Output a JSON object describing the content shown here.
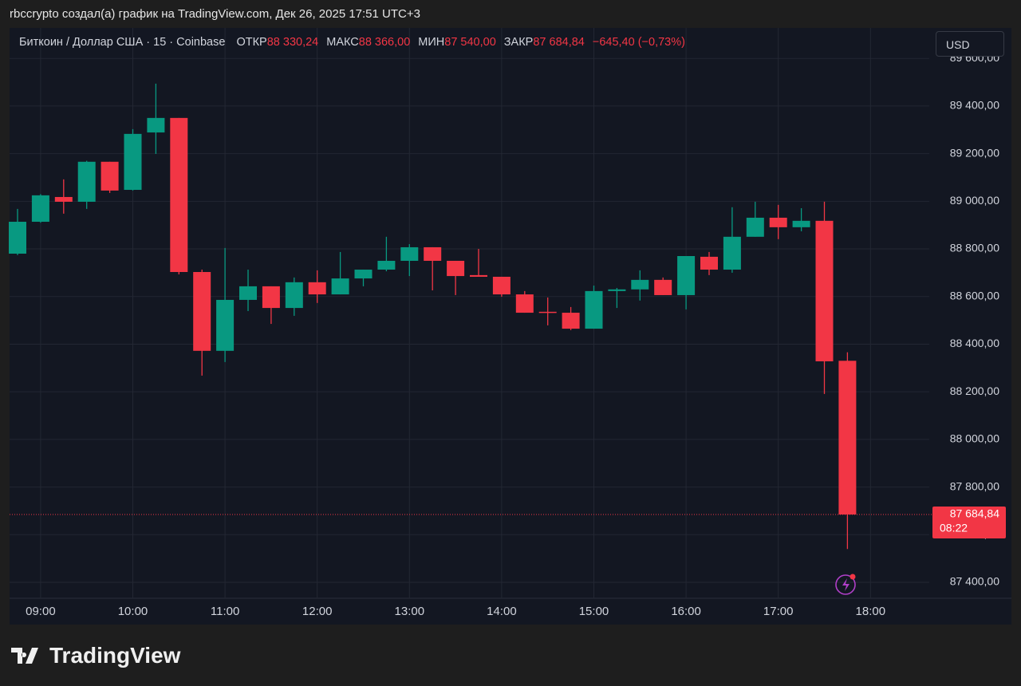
{
  "header": {
    "text": "rbccrypto создал(а) график на TradingView.com, Дек 26, 2025 17:51 UTC+3"
  },
  "chart_data": {
    "type": "candlestick",
    "symbol": "Биткоин / Доллар США · 15 · Coinbase",
    "ohlc_info": [
      {
        "label": "ОТКР",
        "value": "88 330,24"
      },
      {
        "label": "МАКС",
        "value": "88 366,00"
      },
      {
        "label": "МИН",
        "value": "87 540,00"
      },
      {
        "label": "ЗАКР",
        "value": "87 684,84"
      }
    ],
    "change": "−645,40 (−0,73%)",
    "currency": "USD",
    "up_color": "#089981",
    "down_color": "#f23645",
    "x_labels": [
      "09:00",
      "10:00",
      "11:00",
      "12:00",
      "13:00",
      "14:00",
      "15:00",
      "16:00",
      "17:00",
      "18:00"
    ],
    "open": [
      88780,
      88914,
      89018,
      88998,
      89166,
      89048,
      89289,
      89350,
      88703,
      88372,
      88586,
      88643,
      88552,
      88660,
      88609,
      88676,
      88713,
      88750,
      88807,
      88750,
      88690,
      88683,
      88609,
      88536,
      88532,
      88465,
      88623,
      88630,
      88670,
      88606,
      88767,
      88713,
      88851,
      88931,
      88891,
      88918,
      88330.24
    ],
    "high": [
      88968,
      89030,
      89092,
      89170,
      89166,
      89303,
      89494,
      89350,
      88713,
      88804,
      88713,
      88643,
      88680,
      88710,
      88787,
      88713,
      88851,
      88820,
      88807,
      88750,
      88800,
      88683,
      88623,
      88596,
      88556,
      88646,
      88636,
      88710,
      88680,
      88770,
      88787,
      88975,
      88998,
      88985,
      88971,
      88998,
      88366
    ],
    "low": [
      88774,
      88910,
      88948,
      88968,
      89035,
      89045,
      89199,
      88693,
      88268,
      88325,
      88539,
      88485,
      88519,
      88573,
      88609,
      88643,
      88706,
      88686,
      88626,
      88606,
      88683,
      88599,
      88532,
      88479,
      88459,
      88465,
      88552,
      88583,
      88606,
      88546,
      88690,
      88700,
      88851,
      88841,
      88874,
      88191,
      87540
    ],
    "close": [
      88914,
      89025,
      88998,
      89166,
      89045,
      89283,
      89350,
      88703,
      88372,
      88586,
      88643,
      88552,
      88660,
      88609,
      88676,
      88713,
      88750,
      88807,
      88750,
      88686,
      88683,
      88609,
      88532,
      88532,
      88465,
      88623,
      88630,
      88670,
      88606,
      88770,
      88713,
      88851,
      88931,
      88891,
      88918,
      88328,
      87684.84
    ],
    "ylim": [
      87333,
      89728
    ],
    "yticks": [
      {
        "value": 87400,
        "label": "87 400,00"
      },
      {
        "value": 87600,
        "label": "87 600,00"
      },
      {
        "value": 87800,
        "label": "87 800,00"
      },
      {
        "value": 88000,
        "label": "88 000,00"
      },
      {
        "value": 88200,
        "label": "88 200,00"
      },
      {
        "value": 88400,
        "label": "88 400,00"
      },
      {
        "value": 88600,
        "label": "88 600,00"
      },
      {
        "value": 88800,
        "label": "88 800,00"
      },
      {
        "value": 89000,
        "label": "89 000,00"
      },
      {
        "value": 89200,
        "label": "89 200,00"
      },
      {
        "value": 89400,
        "label": "89 400,00"
      },
      {
        "value": 89600,
        "label": "89 600,00"
      }
    ],
    "grid": true,
    "last_price": {
      "value": 87684.84,
      "label": "87 684,84"
    },
    "countdown": "08:22"
  },
  "footer": {
    "logo": "TradingView"
  }
}
